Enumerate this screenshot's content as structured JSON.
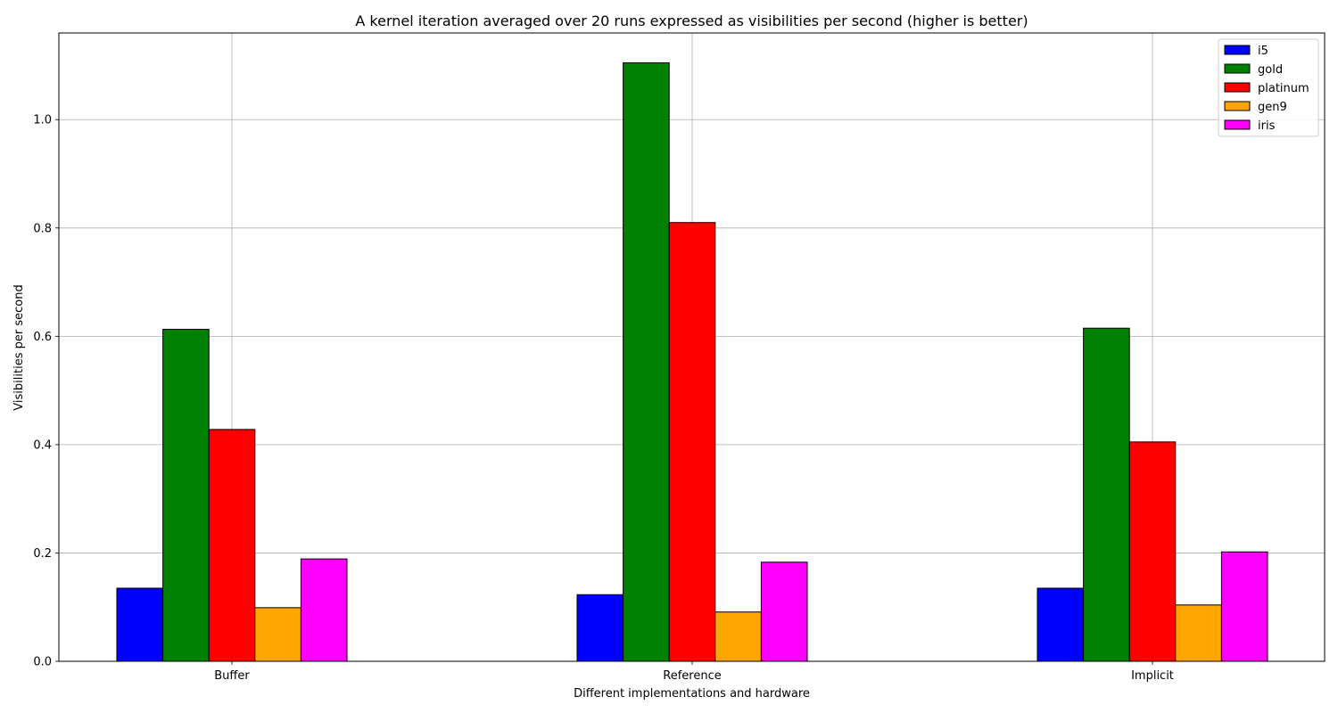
{
  "chart_data": {
    "type": "bar",
    "title": "A kernel iteration averaged over 20 runs expressed as visibilities per second (higher is better)",
    "xlabel": "Different implementations and hardware",
    "ylabel": "Visibilities per second",
    "categories": [
      "Buffer",
      "Reference",
      "Implicit"
    ],
    "ylim": [
      0,
      1.16
    ],
    "yticks": [
      0.0,
      0.2,
      0.4,
      0.6,
      0.8,
      1.0
    ],
    "ytick_labels": [
      "0.0",
      "0.2",
      "0.4",
      "0.6",
      "0.8",
      "1.0"
    ],
    "grid": true,
    "legend_position": "top-right",
    "series": [
      {
        "name": "i5",
        "color": "#0000ff",
        "values": [
          0.135,
          0.123,
          0.135
        ]
      },
      {
        "name": "gold",
        "color": "#008000",
        "values": [
          0.613,
          1.105,
          0.615
        ]
      },
      {
        "name": "platinum",
        "color": "#ff0000",
        "values": [
          0.428,
          0.81,
          0.405
        ]
      },
      {
        "name": "gen9",
        "color": "#ffa500",
        "values": [
          0.099,
          0.091,
          0.104
        ]
      },
      {
        "name": "iris",
        "color": "#ff00ff",
        "values": [
          0.189,
          0.183,
          0.202
        ]
      }
    ]
  }
}
